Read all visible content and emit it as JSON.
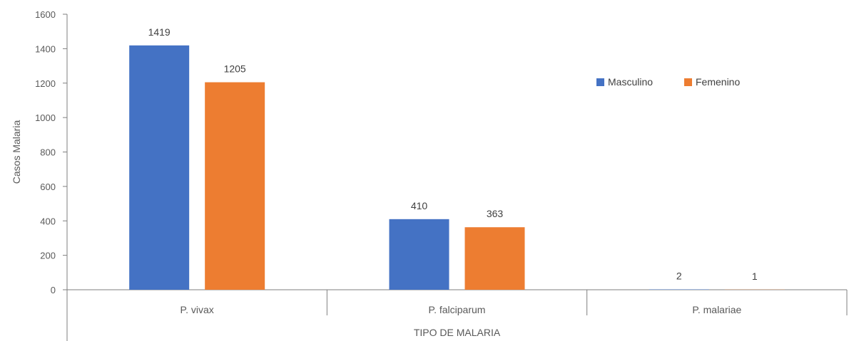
{
  "chart_data": {
    "type": "bar",
    "categories": [
      "P. vivax",
      "P. falciparum",
      "P. malariae"
    ],
    "series": [
      {
        "name": "Masculino",
        "color": "#4472C4",
        "values": [
          1419,
          410,
          2
        ]
      },
      {
        "name": "Femenino",
        "color": "#ED7D31",
        "values": [
          1205,
          363,
          1
        ]
      }
    ],
    "xlabel": "TIPO DE MALARIA",
    "ylabel": "Casos Malaria",
    "ylim": [
      0,
      1600
    ],
    "yticks": [
      0,
      200,
      400,
      600,
      800,
      1000,
      1200,
      1400,
      1600
    ],
    "legend_position": "right",
    "grid": false,
    "data_labels": true
  }
}
